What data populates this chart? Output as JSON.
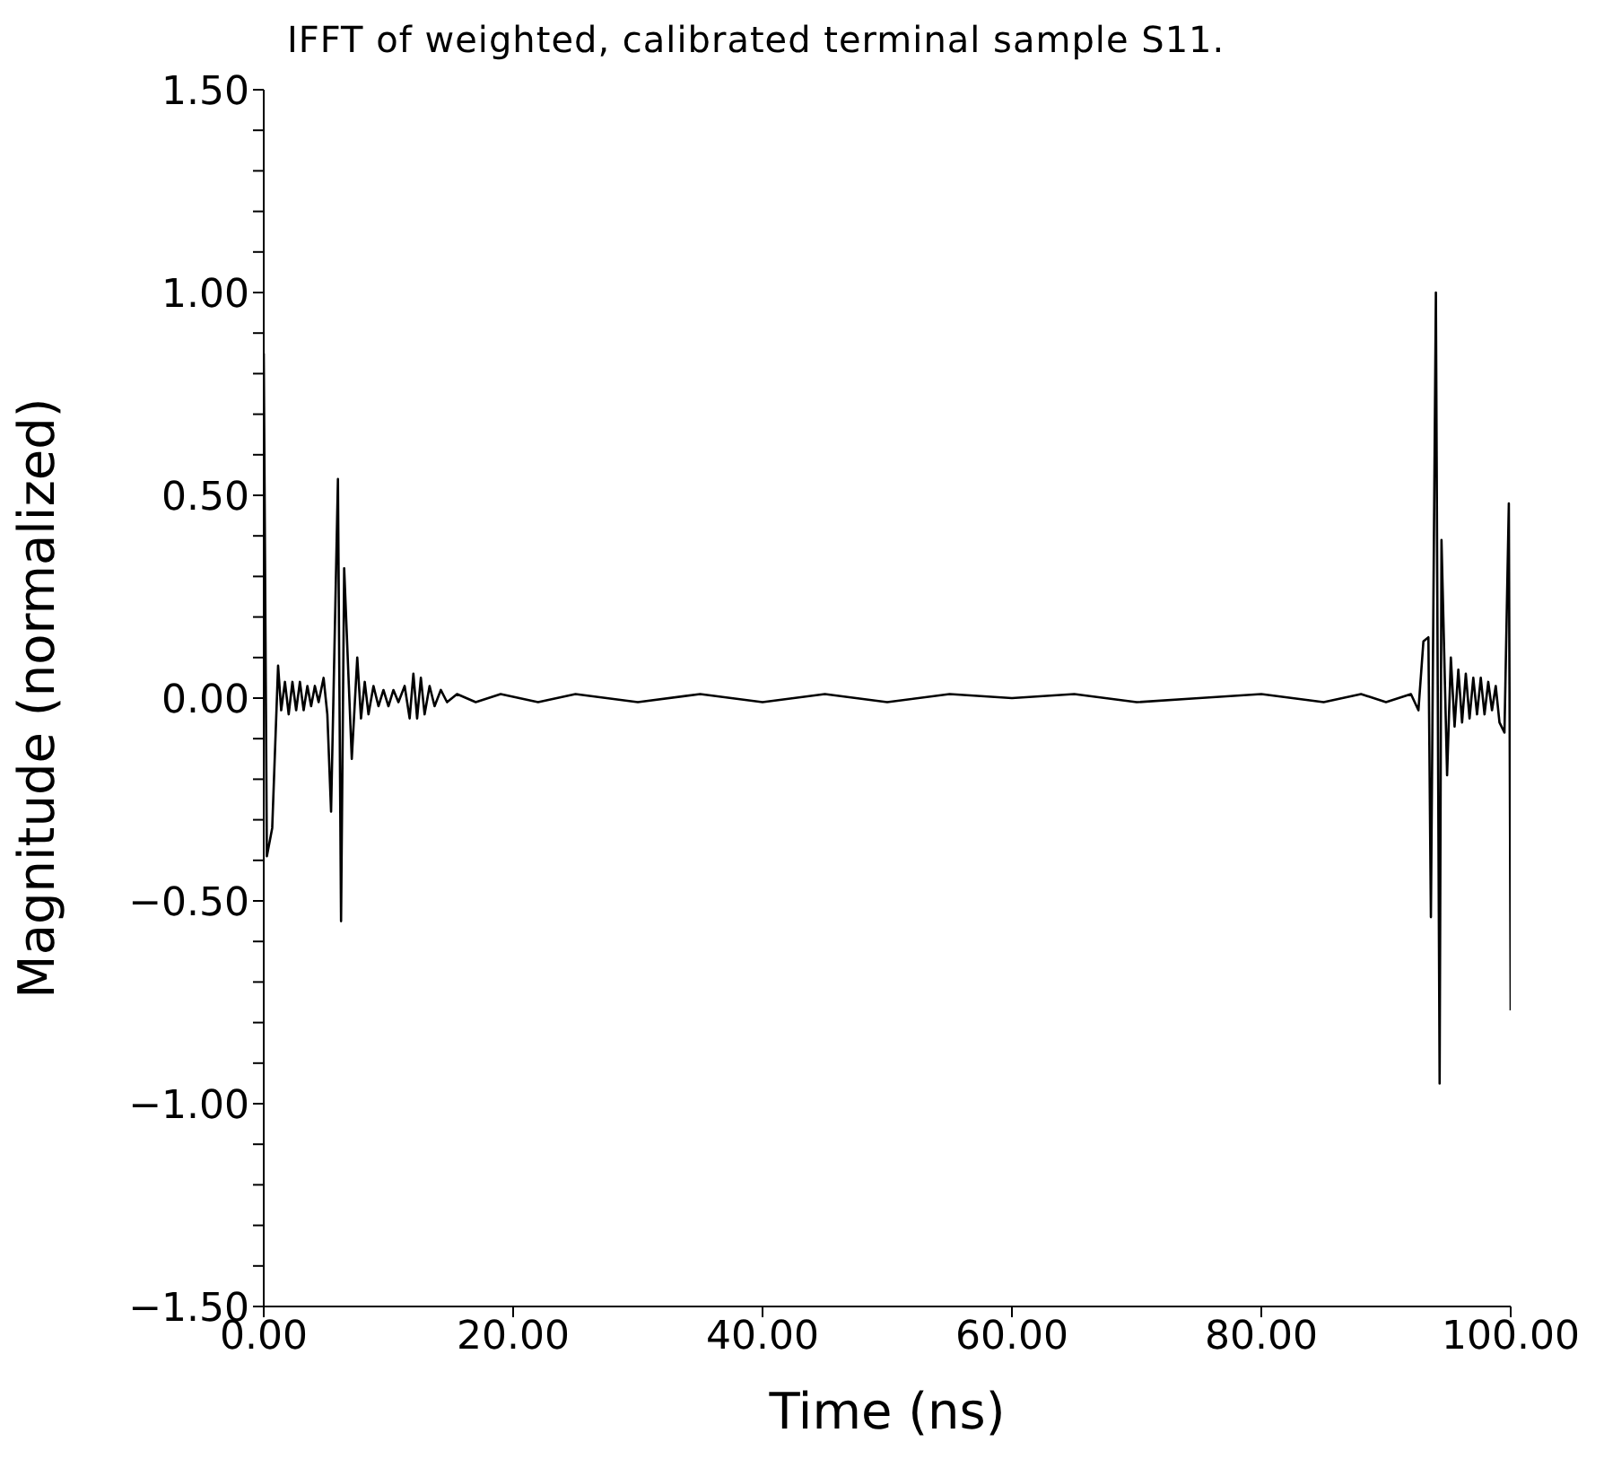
{
  "chart_data": {
    "type": "line",
    "title": "IFFT of weighted, calibrated terminal sample S11.",
    "xlabel": "Time  (ns)",
    "ylabel": "Magnitude  (normalized)",
    "x": [
      0,
      0.25,
      0.68,
      1.15,
      1.4,
      1.7,
      2.0,
      2.3,
      2.6,
      2.9,
      3.2,
      3.5,
      3.8,
      4.1,
      4.4,
      4.8,
      5.1,
      5.4,
      5.95,
      6.2,
      6.45,
      7.06,
      7.5,
      7.8,
      8.1,
      8.4,
      8.8,
      9.2,
      9.6,
      10.0,
      10.4,
      10.8,
      11.3,
      11.7,
      12.0,
      12.3,
      12.6,
      12.9,
      13.3,
      13.7,
      14.2,
      14.7,
      15.5,
      17,
      19,
      22,
      25,
      30,
      35,
      40,
      45,
      50,
      55,
      60,
      65,
      70,
      75,
      80,
      85,
      88,
      90,
      92,
      92.6,
      93.0,
      93.4,
      93.6,
      94.0,
      94.3,
      94.45,
      94.9,
      95.2,
      95.5,
      95.8,
      96.1,
      96.4,
      96.7,
      97.0,
      97.3,
      97.6,
      97.9,
      98.2,
      98.5,
      98.8,
      99.1,
      99.5,
      99.85,
      100
    ],
    "series": [
      {
        "color": "#000000",
        "values": [
          0.85,
          -0.39,
          -0.32,
          0.08,
          -0.03,
          0.04,
          -0.04,
          0.04,
          -0.03,
          0.04,
          -0.03,
          0.03,
          -0.02,
          0.03,
          -0.01,
          0.05,
          -0.04,
          -0.28,
          0.54,
          -0.55,
          0.32,
          -0.15,
          0.1,
          -0.05,
          0.04,
          -0.04,
          0.03,
          -0.02,
          0.02,
          -0.02,
          0.02,
          -0.01,
          0.03,
          -0.05,
          0.06,
          -0.05,
          0.05,
          -0.04,
          0.03,
          -0.02,
          0.02,
          -0.01,
          0.01,
          -0.01,
          0.01,
          -0.01,
          0.01,
          -0.01,
          0.01,
          -0.01,
          0.01,
          -0.01,
          0.01,
          0,
          0.01,
          -0.01,
          0,
          0.01,
          -0.01,
          0.01,
          -0.01,
          0.01,
          -0.03,
          0.14,
          0.15,
          -0.54,
          1.0,
          -0.95,
          0.39,
          -0.19,
          0.1,
          -0.07,
          0.07,
          -0.06,
          0.06,
          -0.05,
          0.05,
          -0.04,
          0.05,
          -0.04,
          0.04,
          -0.03,
          0.03,
          -0.06,
          -0.085,
          0.48,
          -0.77
        ]
      }
    ],
    "xlim": [
      0,
      100
    ],
    "xticks": [
      {
        "value": 0,
        "label": "0.00"
      },
      {
        "value": 20,
        "label": "20.00"
      },
      {
        "value": 40,
        "label": "40.00"
      },
      {
        "value": 60,
        "label": "60.00"
      },
      {
        "value": 80,
        "label": "80.00"
      },
      {
        "value": 100,
        "label": "100.00"
      }
    ],
    "ylim": [
      -1.5,
      1.5
    ],
    "yticks": [
      {
        "value": -1.5,
        "label": "−1.50"
      },
      {
        "value": -1.4,
        "label": null
      },
      {
        "value": -1.3,
        "label": null
      },
      {
        "value": -1.2,
        "label": null
      },
      {
        "value": -1.1,
        "label": null
      },
      {
        "value": -1.0,
        "label": "−1.00"
      },
      {
        "value": -0.9,
        "label": null
      },
      {
        "value": -0.8,
        "label": null
      },
      {
        "value": -0.7,
        "label": null
      },
      {
        "value": -0.6,
        "label": null
      },
      {
        "value": -0.5,
        "label": "−0.50"
      },
      {
        "value": -0.4,
        "label": null
      },
      {
        "value": -0.3,
        "label": null
      },
      {
        "value": -0.2,
        "label": null
      },
      {
        "value": -0.1,
        "label": null
      },
      {
        "value": 0,
        "label": "0.00"
      },
      {
        "value": 0.1,
        "label": null
      },
      {
        "value": 0.2,
        "label": null
      },
      {
        "value": 0.3,
        "label": null
      },
      {
        "value": 0.4,
        "label": null
      },
      {
        "value": 0.5,
        "label": "0.50"
      },
      {
        "value": 0.6,
        "label": null
      },
      {
        "value": 0.7,
        "label": null
      },
      {
        "value": 0.8,
        "label": null
      },
      {
        "value": 0.9,
        "label": null
      },
      {
        "value": 1.0,
        "label": "1.00"
      },
      {
        "value": 1.1,
        "label": null
      },
      {
        "value": 1.2,
        "label": null
      },
      {
        "value": 1.3,
        "label": null
      },
      {
        "value": 1.4,
        "label": null
      },
      {
        "value": 1.5,
        "label": "1.50"
      }
    ],
    "marker": "none",
    "line_style": "solid"
  }
}
